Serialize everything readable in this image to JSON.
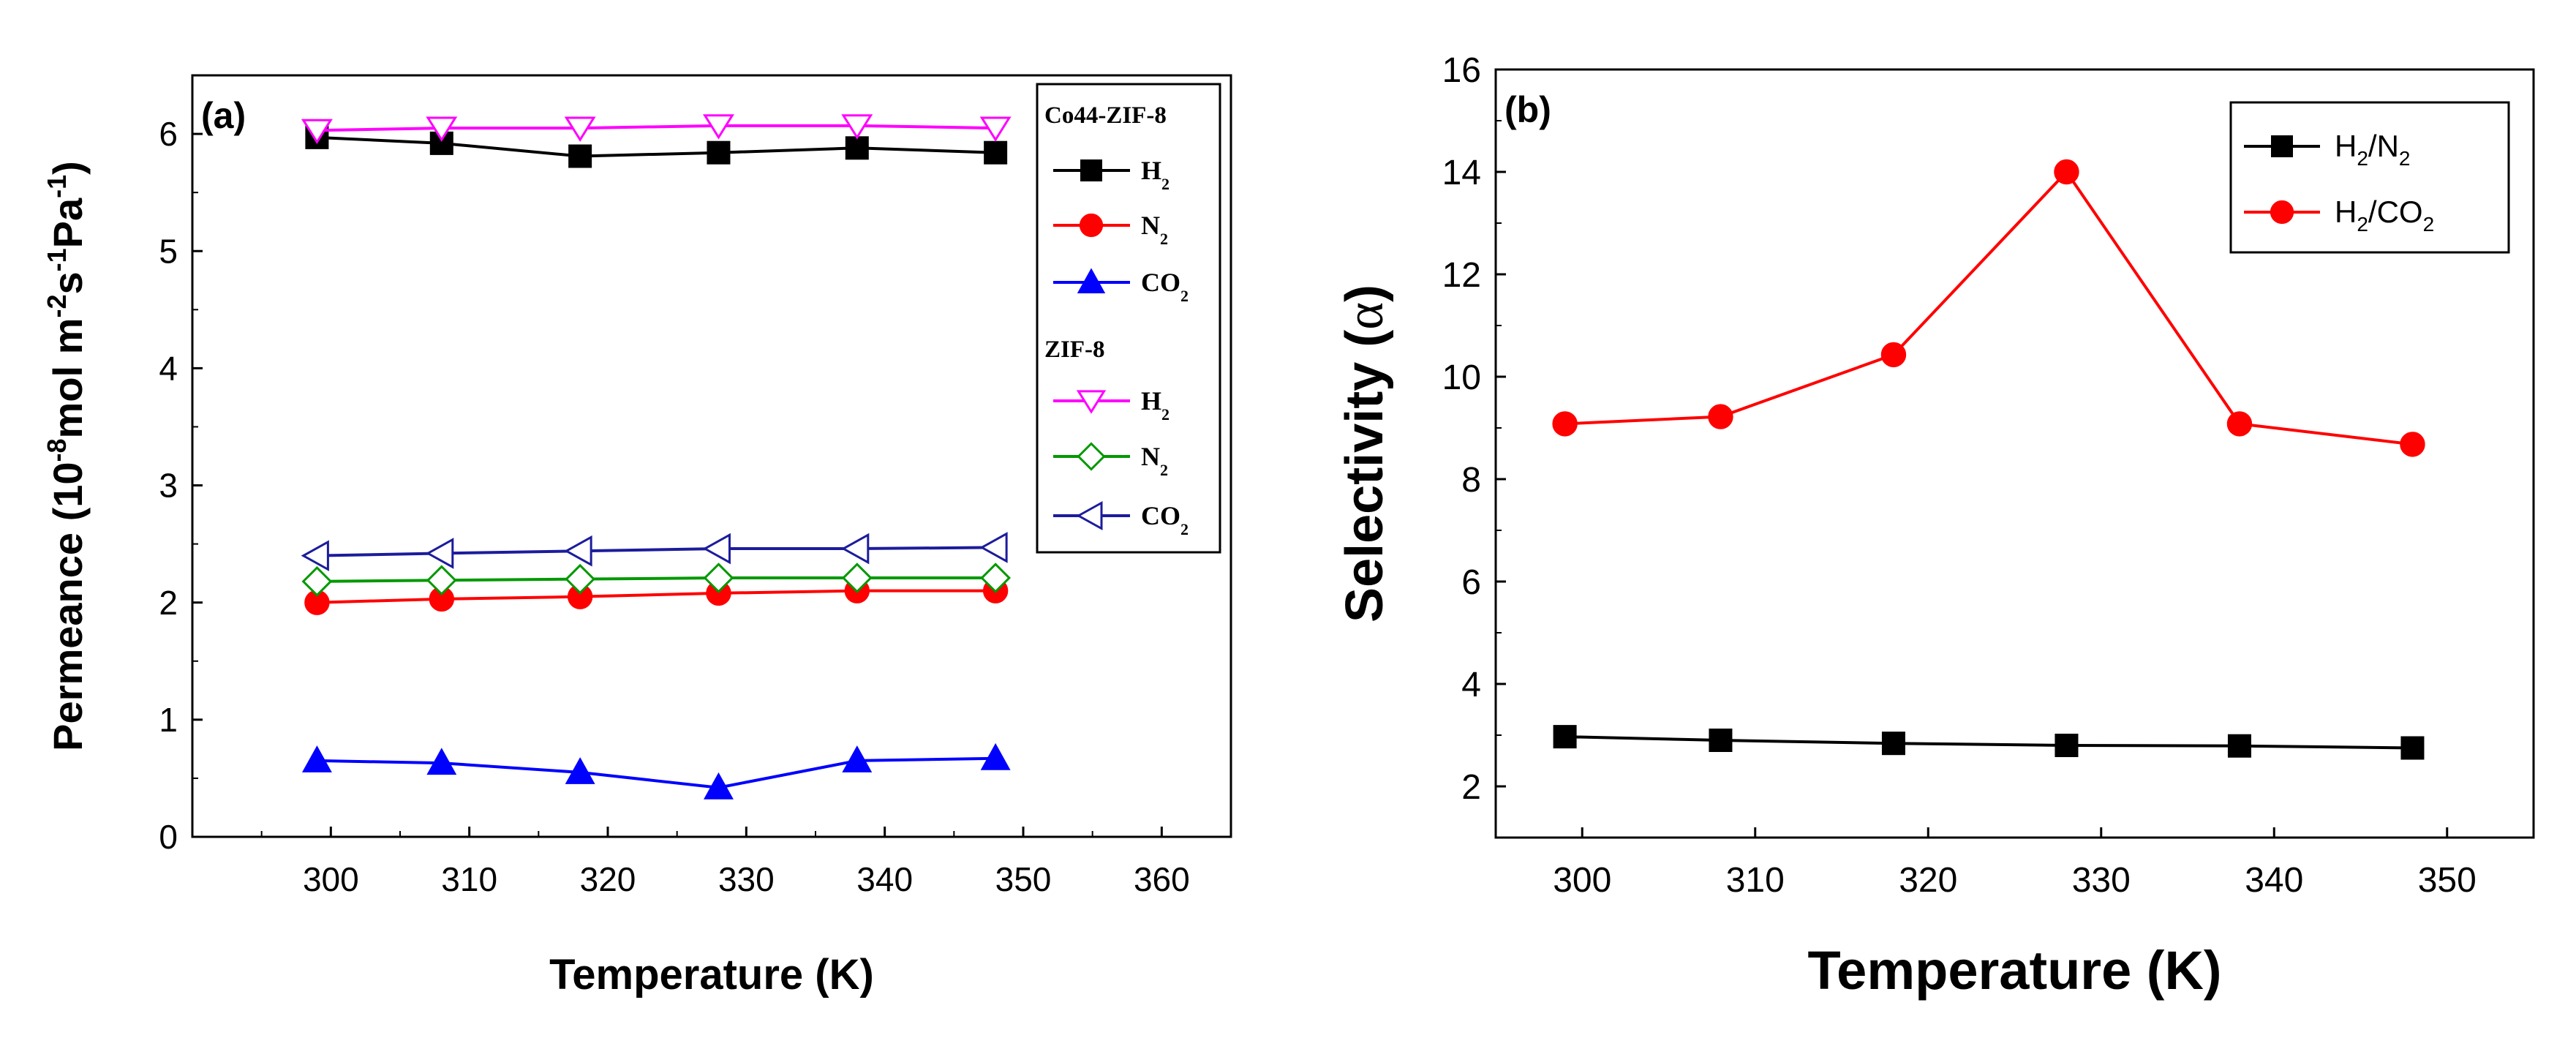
{
  "chart_data": [
    {
      "panel": "(a)",
      "type": "line",
      "xlabel": "Temperature (K)",
      "ylabel": "Permeance (10-8mol m-2s-1Pa-1)",
      "ylabel_parts": {
        "pre": "Permeance (",
        "base": "10",
        "exp1": "-8",
        "mid1": "mol m",
        "exp2": "-2",
        "mid2": "s",
        "exp3": "-1",
        "mid3": "Pa",
        "exp4": "-1",
        "post": ")"
      },
      "xlim": [
        290,
        365
      ],
      "ylim": [
        0,
        6.5
      ],
      "xticks": [
        300,
        310,
        320,
        330,
        340,
        350,
        360
      ],
      "yticks": [
        0,
        1,
        2,
        3,
        4,
        5,
        6
      ],
      "x": [
        299,
        308,
        318,
        328,
        338,
        348
      ],
      "legend_position": "top-right",
      "legend_groups": [
        "Co44-ZIF-8",
        "ZIF-8"
      ],
      "series": [
        {
          "name": "H2",
          "base": "H",
          "sub": "2",
          "group": 0,
          "color": "#000000",
          "marker": "square",
          "filled": true,
          "values": [
            5.97,
            5.92,
            5.81,
            5.84,
            5.88,
            5.84
          ]
        },
        {
          "name": "N2",
          "base": "N",
          "sub": "2",
          "group": 0,
          "color": "#ff0000",
          "marker": "circle",
          "filled": true,
          "values": [
            2.0,
            2.03,
            2.05,
            2.08,
            2.1,
            2.1
          ]
        },
        {
          "name": "CO2",
          "base": "CO",
          "sub": "2",
          "group": 0,
          "color": "#0000ff",
          "marker": "triangle-up",
          "filled": true,
          "values": [
            0.65,
            0.63,
            0.55,
            0.42,
            0.65,
            0.67
          ]
        },
        {
          "name": "H2",
          "base": "H",
          "sub": "2",
          "group": 1,
          "color": "#ff00ff",
          "marker": "triangle-down",
          "filled": false,
          "values": [
            6.03,
            6.05,
            6.05,
            6.07,
            6.07,
            6.05
          ]
        },
        {
          "name": "N2",
          "base": "N",
          "sub": "2",
          "group": 1,
          "color": "#009900",
          "marker": "diamond",
          "filled": false,
          "values": [
            2.18,
            2.19,
            2.2,
            2.21,
            2.21,
            2.21
          ]
        },
        {
          "name": "CO2",
          "base": "CO",
          "sub": "2",
          "group": 1,
          "color": "#1c1c9c",
          "marker": "triangle-left",
          "filled": false,
          "values": [
            2.4,
            2.42,
            2.44,
            2.46,
            2.46,
            2.47
          ]
        }
      ]
    },
    {
      "panel": "(b)",
      "type": "line",
      "xlabel": "Temperature (K)",
      "ylabel": "Selectivity (α)",
      "ylabel_parts": {
        "pre": "Selectivity (",
        "alpha": "α",
        "post": ")"
      },
      "xlim": [
        295,
        355
      ],
      "ylim": [
        1,
        16
      ],
      "xticks": [
        300,
        310,
        320,
        330,
        340,
        350
      ],
      "yticks": [
        2,
        4,
        6,
        8,
        10,
        12,
        14,
        16
      ],
      "x": [
        299,
        308,
        318,
        328,
        338,
        348
      ],
      "legend_position": "top-right",
      "series": [
        {
          "name": "H2/N2",
          "parts": [
            "H",
            "2",
            "/N",
            "2"
          ],
          "color": "#000000",
          "marker": "square",
          "filled": true,
          "values": [
            2.97,
            2.9,
            2.84,
            2.8,
            2.79,
            2.75
          ]
        },
        {
          "name": "H2/CO2",
          "parts": [
            "H",
            "2",
            "/CO",
            "2"
          ],
          "color": "#ff0000",
          "marker": "circle",
          "filled": true,
          "values": [
            9.08,
            9.22,
            10.43,
            14.0,
            9.08,
            8.68
          ]
        }
      ]
    }
  ]
}
